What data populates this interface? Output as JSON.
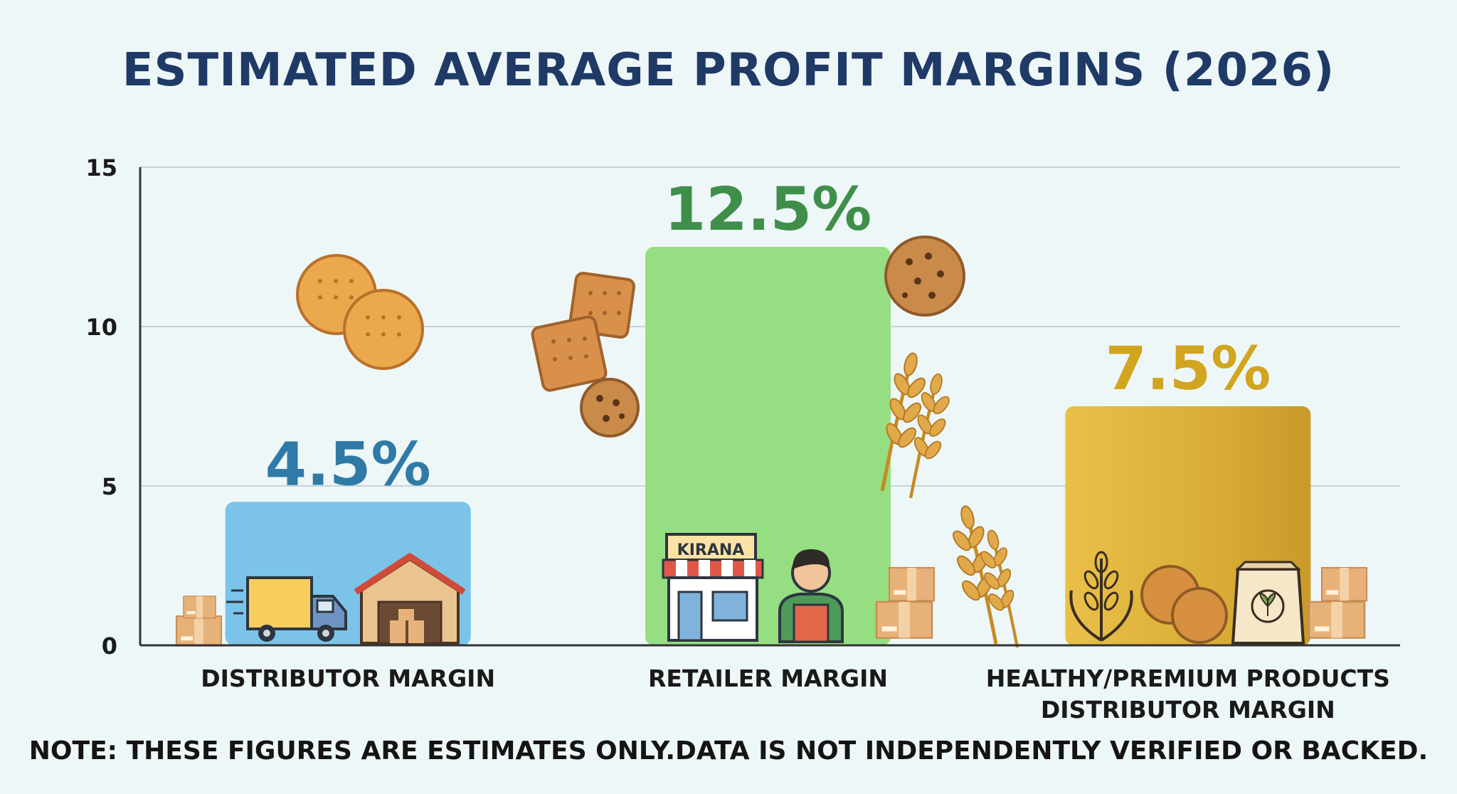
{
  "chart_data": {
    "type": "bar",
    "title": "ESTIMATED AVERAGE PROFIT MARGINS (2026)",
    "categories": [
      "DISTRIBUTOR MARGIN",
      "RETAILER MARGIN",
      "HEALTHY/PREMIUM PRODUCTS DISTRIBUTOR MARGIN"
    ],
    "category_lines": [
      [
        "DISTRIBUTOR MARGIN"
      ],
      [
        "RETAILER MARGIN"
      ],
      [
        "HEALTHY/PREMIUM PRODUCTS",
        "DISTRIBUTOR MARGIN"
      ]
    ],
    "values": [
      4.5,
      12.5,
      7.5
    ],
    "value_labels": [
      "4.5%",
      "12.5%",
      "7.5%"
    ],
    "bar_colors": [
      "#7cc3e9",
      "#96de82",
      "#ddb33e"
    ],
    "label_colors": [
      "#2f7aa6",
      "#3f8f4a",
      "#d2a520"
    ],
    "ylim": [
      0,
      15
    ],
    "yticks": [
      0,
      5,
      10,
      15
    ],
    "ytick_labels": [
      "0",
      "5",
      "10",
      "15"
    ],
    "xlabel": "",
    "ylabel": "",
    "grid": true,
    "legend": "none"
  },
  "footnote": "NOTE: THESE FIGURES ARE ESTIMATES ONLY.DATA IS NOT INDEPENDENTLY VERIFIED OR BACKED.",
  "icons": {
    "shop_sign": "KIRANA",
    "names": [
      "cracker-cookie-icon",
      "square-biscuit-icon",
      "chocolate-chip-cookie-icon",
      "wheat-icon",
      "delivery-truck-icon",
      "warehouse-icon",
      "kirana-shop-icon",
      "shopkeeper-icon",
      "cardboard-box-icon",
      "grain-badge-icon",
      "digestive-biscuit-icon",
      "food-pouch-icon"
    ]
  }
}
